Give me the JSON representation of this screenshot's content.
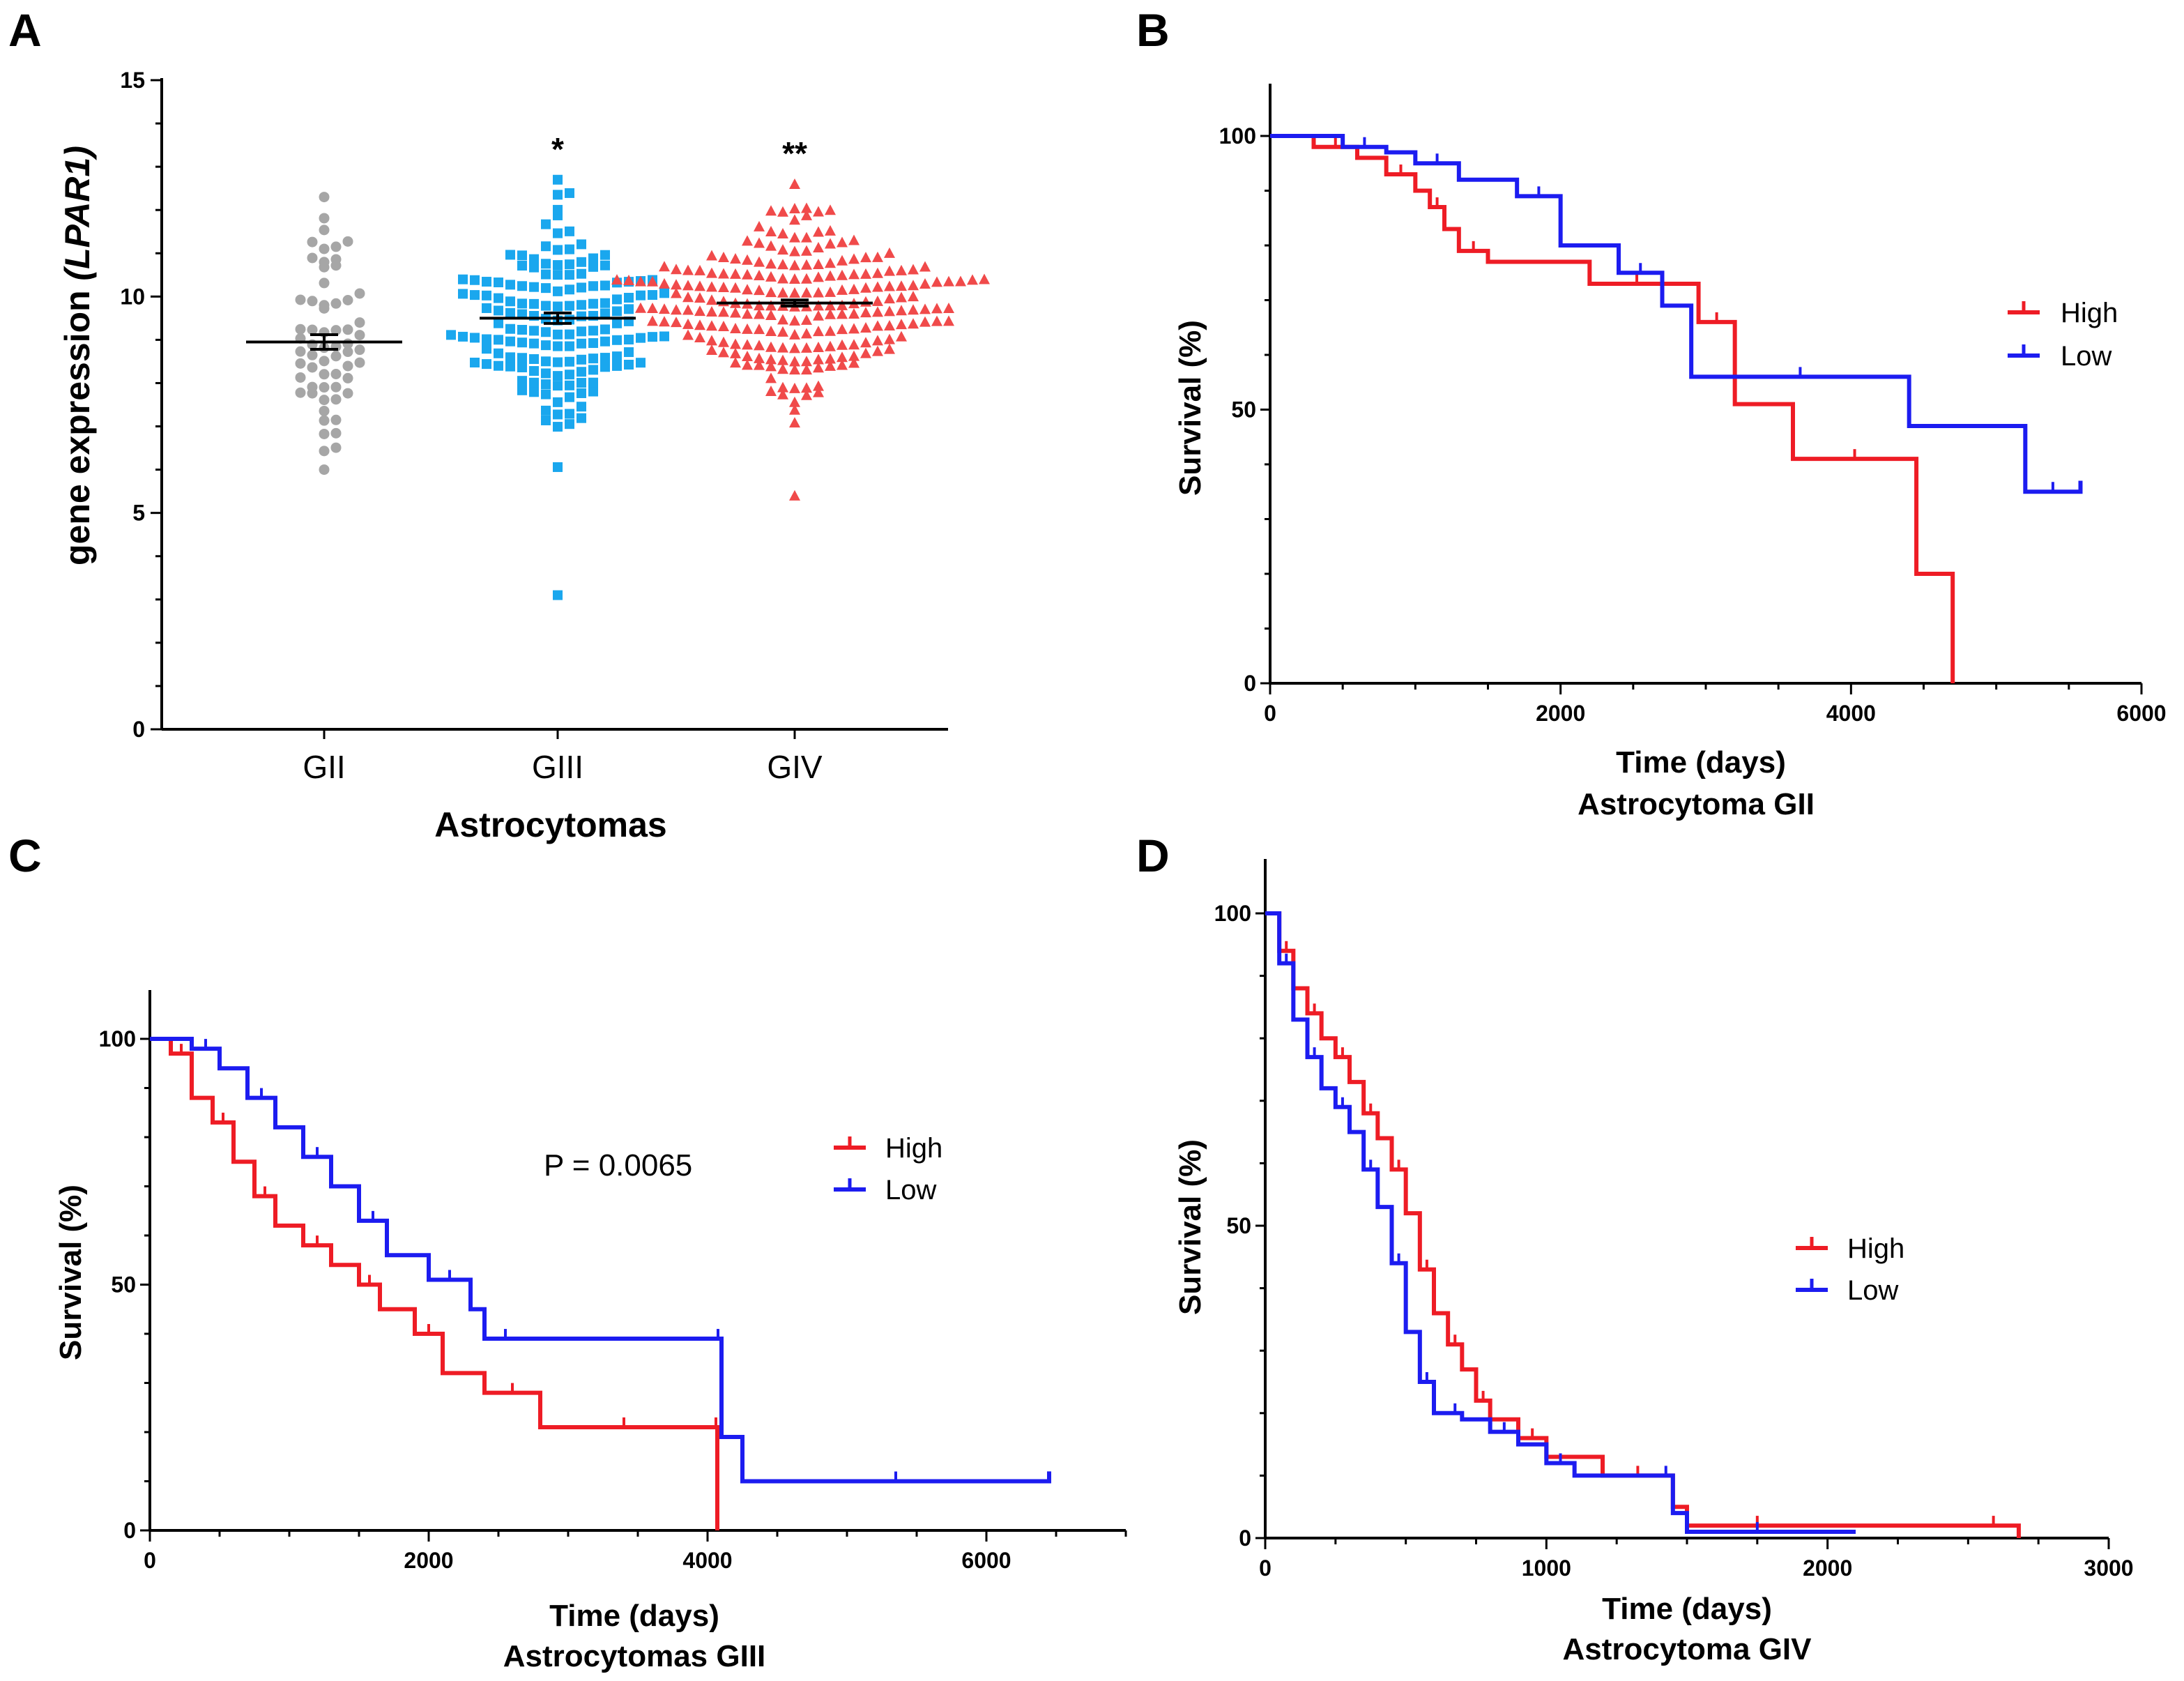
{
  "colors": {
    "high": "#ee1c25",
    "low": "#1c1cf0",
    "gii": "#a6a6a6",
    "giii": "#1aa7ee",
    "giv": "#f04a4a",
    "axis": "#000000"
  },
  "chart_data": [
    {
      "id": "A",
      "type": "scatter",
      "panel_label": "A",
      "title": "",
      "xlabel": "Astrocytomas",
      "ylabel": "gene expression (LPAR1)",
      "ylabel_plain": "gene expression ",
      "ylabel_italic": "(LPAR1)",
      "ylim": [
        0,
        15
      ],
      "yticks": [
        0,
        5,
        10,
        15
      ],
      "categories": [
        "GII",
        "GIII",
        "GIV"
      ],
      "groups": [
        {
          "name": "GII",
          "marker": "circle",
          "n": 62,
          "mean": 8.95,
          "sem": 0.17,
          "min": 6.0,
          "max": 12.3,
          "significance": ""
        },
        {
          "name": "GIII",
          "marker": "square",
          "n": 160,
          "mean": 9.5,
          "sem": 0.12,
          "min": 3.1,
          "max": 12.7,
          "significance": "*"
        },
        {
          "name": "GIV",
          "marker": "triangle",
          "n": 230,
          "mean": 9.85,
          "sem": 0.07,
          "min": 5.4,
          "max": 12.6,
          "significance": "**"
        }
      ]
    },
    {
      "id": "B",
      "type": "line",
      "panel_label": "B",
      "title": "Astrocytoma GII",
      "xlabel": "Time (days)",
      "ylabel": "Survival (%)",
      "xlim": [
        0,
        6000
      ],
      "ylim": [
        0,
        100
      ],
      "xticks": [
        0,
        2000,
        4000,
        6000
      ],
      "yticks": [
        0,
        50,
        100
      ],
      "annotation": "",
      "legend": [
        "High",
        "Low"
      ],
      "series": [
        {
          "name": "High",
          "x": [
            0,
            300,
            600,
            800,
            1000,
            1100,
            1200,
            1300,
            1500,
            2200,
            2850,
            2950,
            3200,
            3600,
            4450,
            4700
          ],
          "y": [
            100,
            98,
            96,
            93,
            90,
            87,
            83,
            79,
            77,
            73,
            73,
            66,
            51,
            41,
            20,
            0
          ]
        },
        {
          "name": "Low",
          "x": [
            0,
            500,
            800,
            1000,
            1300,
            1700,
            2000,
            2400,
            2700,
            2900,
            4400,
            5200,
            5580
          ],
          "y": [
            100,
            98,
            97,
            95,
            92,
            89,
            80,
            75,
            69,
            56,
            47,
            35,
            37
          ]
        }
      ]
    },
    {
      "id": "C",
      "type": "line",
      "panel_label": "C",
      "title": "Astrocytomas GIII",
      "xlabel": "Time (days)",
      "ylabel": "Survival (%)",
      "xlim": [
        0,
        7000
      ],
      "ylim": [
        0,
        100
      ],
      "xticks": [
        0,
        2000,
        4000,
        6000
      ],
      "yticks": [
        0,
        50,
        100
      ],
      "annotation": "P = 0.0065",
      "legend": [
        "High",
        "Low"
      ],
      "series": [
        {
          "name": "High",
          "x": [
            0,
            150,
            300,
            450,
            600,
            750,
            900,
            1100,
            1300,
            1500,
            1650,
            1900,
            2100,
            2400,
            2800,
            3200,
            3600,
            4050,
            4070
          ],
          "y": [
            100,
            97,
            88,
            83,
            75,
            68,
            62,
            58,
            54,
            50,
            45,
            40,
            32,
            28,
            21,
            21,
            21,
            21,
            0
          ]
        },
        {
          "name": "Low",
          "x": [
            0,
            300,
            500,
            700,
            900,
            1100,
            1300,
            1500,
            1700,
            2000,
            2300,
            2400,
            2700,
            4050,
            4100,
            4250,
            6450
          ],
          "y": [
            100,
            98,
            94,
            88,
            82,
            76,
            70,
            63,
            56,
            51,
            45,
            39,
            39,
            39,
            19,
            10,
            12
          ]
        }
      ]
    },
    {
      "id": "D",
      "type": "line",
      "panel_label": "D",
      "title": "Astrocytoma GIV",
      "xlabel": "Time (days)",
      "ylabel": "Survival  (%)",
      "xlim": [
        0,
        3000
      ],
      "ylim": [
        0,
        100
      ],
      "xticks": [
        0,
        1000,
        2000,
        3000
      ],
      "yticks": [
        0,
        50,
        100
      ],
      "annotation": "",
      "legend": [
        "High",
        "Low"
      ],
      "series": [
        {
          "name": "High",
          "x": [
            0,
            50,
            100,
            150,
            200,
            250,
            300,
            350,
            400,
            450,
            500,
            550,
            600,
            650,
            700,
            750,
            800,
            900,
            1000,
            1200,
            1450,
            1500,
            2000,
            2500,
            2680
          ],
          "y": [
            100,
            94,
            88,
            84,
            80,
            77,
            73,
            68,
            64,
            59,
            52,
            43,
            36,
            31,
            27,
            22,
            19,
            16,
            13,
            10,
            5,
            2,
            2,
            2,
            0
          ]
        },
        {
          "name": "Low",
          "x": [
            0,
            50,
            100,
            150,
            200,
            250,
            300,
            350,
            400,
            450,
            500,
            550,
            600,
            650,
            700,
            800,
            900,
            1000,
            1100,
            1400,
            1450,
            1500,
            2000,
            2100
          ],
          "y": [
            100,
            92,
            83,
            77,
            72,
            69,
            65,
            59,
            53,
            44,
            33,
            25,
            20,
            20,
            19,
            17,
            15,
            12,
            10,
            10,
            4,
            1,
            1,
            1
          ]
        }
      ]
    }
  ]
}
